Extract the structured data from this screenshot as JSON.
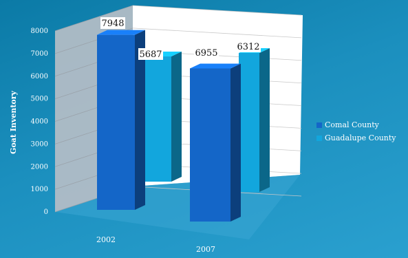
{
  "chart_data": {
    "type": "bar",
    "title": "",
    "xlabel": "",
    "ylabel": "Goat Inventory",
    "categories": [
      "2002",
      "2007"
    ],
    "series": [
      {
        "name": "Comal County",
        "values": [
          7948,
          6955
        ],
        "color": "#1466c8"
      },
      {
        "name": "Guadalupe County",
        "values": [
          5687,
          6312
        ],
        "color": "#12a6dd"
      }
    ],
    "ylim": [
      0,
      8000
    ],
    "yticks": [
      "0",
      "1000",
      "2000",
      "3000",
      "4000",
      "5000",
      "6000",
      "7000",
      "8000"
    ],
    "data_labels": [
      "7948",
      "5687",
      "6955",
      "6312"
    ],
    "legend_position": "right",
    "grid": true,
    "style": "3d-clustered-column"
  }
}
